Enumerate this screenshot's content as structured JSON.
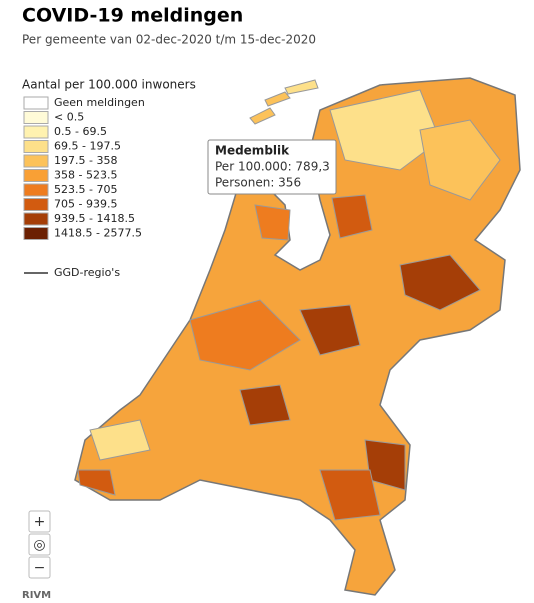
{
  "header": {
    "title": "COVID-19 meldingen",
    "subtitle": "Per gemeente van 02-dec-2020 t/m 15-dec-2020"
  },
  "legend": {
    "title": "Aantal per 100.000 inwoners",
    "items": [
      {
        "label": "Geen meldingen",
        "color": "#ffffff"
      },
      {
        "label": "< 0.5",
        "color": "#fffbd8"
      },
      {
        "label": "0.5 - 69.5",
        "color": "#fff2b0"
      },
      {
        "label": "69.5 - 197.5",
        "color": "#fde08a"
      },
      {
        "label": "197.5 - 358",
        "color": "#fcc25a"
      },
      {
        "label": "358 - 523.5",
        "color": "#f9a035"
      },
      {
        "label": "523.5 - 705",
        "color": "#ee7c1f"
      },
      {
        "label": "705 - 939.5",
        "color": "#d25b10"
      },
      {
        "label": "939.5 - 1418.5",
        "color": "#a53e07"
      },
      {
        "label": "1418.5 - 2577.5",
        "color": "#6b2002"
      }
    ],
    "ggd_label": "GGD-regio's"
  },
  "tooltip": {
    "name": "Medemblik",
    "lines": [
      "Per 100.000: 789,3",
      "Personen: 356"
    ]
  },
  "controls": [
    "+",
    "◎",
    "−"
  ],
  "footer": "RIVM"
}
